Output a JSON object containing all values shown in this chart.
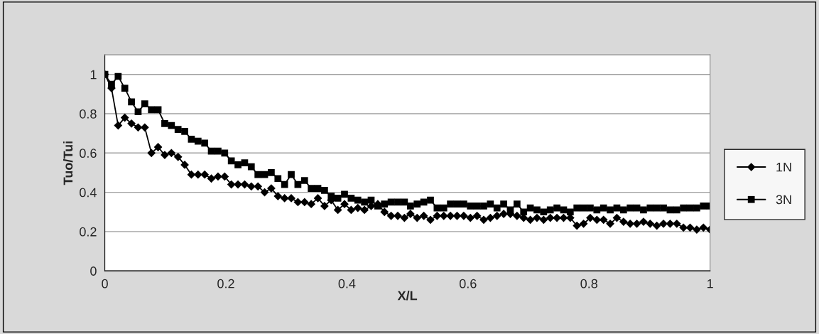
{
  "chart_data": {
    "type": "line",
    "xlabel": "X/L",
    "ylabel": "Tuo/Tui",
    "x": [
      0,
      0.011,
      0.022,
      0.033,
      0.044,
      0.055,
      0.066,
      0.077,
      0.088,
      0.099,
      0.11,
      0.121,
      0.132,
      0.143,
      0.154,
      0.165,
      0.176,
      0.187,
      0.198,
      0.209,
      0.22,
      0.231,
      0.242,
      0.253,
      0.264,
      0.275,
      0.286,
      0.297,
      0.308,
      0.319,
      0.33,
      0.341,
      0.352,
      0.363,
      0.374,
      0.385,
      0.396,
      0.407,
      0.418,
      0.429,
      0.44,
      0.451,
      0.462,
      0.473,
      0.484,
      0.495,
      0.505,
      0.516,
      0.527,
      0.538,
      0.549,
      0.56,
      0.571,
      0.582,
      0.593,
      0.604,
      0.615,
      0.626,
      0.637,
      0.648,
      0.659,
      0.67,
      0.681,
      0.692,
      0.703,
      0.714,
      0.725,
      0.736,
      0.747,
      0.758,
      0.769,
      0.78,
      0.791,
      0.802,
      0.813,
      0.824,
      0.835,
      0.846,
      0.857,
      0.868,
      0.879,
      0.89,
      0.901,
      0.912,
      0.923,
      0.934,
      0.945,
      0.956,
      0.967,
      0.978,
      0.989,
      1.0
    ],
    "series": [
      {
        "name": "1N",
        "color": "#000000",
        "marker": "diamond",
        "values": [
          1,
          0.93,
          0.74,
          0.78,
          0.75,
          0.73,
          0.73,
          0.6,
          0.63,
          0.59,
          0.6,
          0.58,
          0.54,
          0.49,
          0.49,
          0.49,
          0.47,
          0.48,
          0.48,
          0.44,
          0.44,
          0.44,
          0.43,
          0.43,
          0.4,
          0.42,
          0.38,
          0.37,
          0.37,
          0.35,
          0.35,
          0.34,
          0.37,
          0.33,
          0.36,
          0.31,
          0.34,
          0.31,
          0.32,
          0.31,
          0.33,
          0.34,
          0.3,
          0.28,
          0.28,
          0.27,
          0.29,
          0.27,
          0.28,
          0.26,
          0.28,
          0.28,
          0.28,
          0.28,
          0.28,
          0.27,
          0.28,
          0.26,
          0.27,
          0.28,
          0.29,
          0.29,
          0.28,
          0.27,
          0.26,
          0.27,
          0.26,
          0.27,
          0.27,
          0.27,
          0.27,
          0.23,
          0.24,
          0.27,
          0.26,
          0.26,
          0.24,
          0.27,
          0.25,
          0.24,
          0.24,
          0.25,
          0.24,
          0.23,
          0.24,
          0.24,
          0.24,
          0.22,
          0.22,
          0.21,
          0.22,
          0.21
        ]
      },
      {
        "name": "3N",
        "color": "#000000",
        "marker": "square",
        "values": [
          1,
          0.95,
          0.99,
          0.93,
          0.86,
          0.81,
          0.85,
          0.82,
          0.82,
          0.75,
          0.74,
          0.72,
          0.71,
          0.67,
          0.66,
          0.65,
          0.61,
          0.61,
          0.6,
          0.56,
          0.54,
          0.55,
          0.53,
          0.49,
          0.49,
          0.5,
          0.47,
          0.44,
          0.49,
          0.44,
          0.46,
          0.42,
          0.42,
          0.41,
          0.38,
          0.37,
          0.39,
          0.37,
          0.36,
          0.35,
          0.36,
          0.33,
          0.34,
          0.35,
          0.35,
          0.35,
          0.33,
          0.34,
          0.35,
          0.36,
          0.32,
          0.32,
          0.34,
          0.34,
          0.34,
          0.33,
          0.33,
          0.33,
          0.34,
          0.32,
          0.34,
          0.31,
          0.34,
          0.3,
          0.32,
          0.31,
          0.3,
          0.31,
          0.32,
          0.31,
          0.3,
          0.32,
          0.32,
          0.32,
          0.31,
          0.32,
          0.31,
          0.32,
          0.31,
          0.32,
          0.32,
          0.31,
          0.32,
          0.32,
          0.32,
          0.31,
          0.31,
          0.32,
          0.32,
          0.32,
          0.33,
          0.33
        ]
      }
    ],
    "xlim": [
      0,
      1
    ],
    "xticks": [
      0,
      0.2,
      0.4,
      0.6,
      0.8,
      1
    ],
    "ylim": [
      0,
      1.1
    ],
    "yticks": [
      0,
      0.2,
      0.4,
      0.6,
      0.8,
      1
    ],
    "grid": "y",
    "legend": "right",
    "line_style": "solid"
  }
}
